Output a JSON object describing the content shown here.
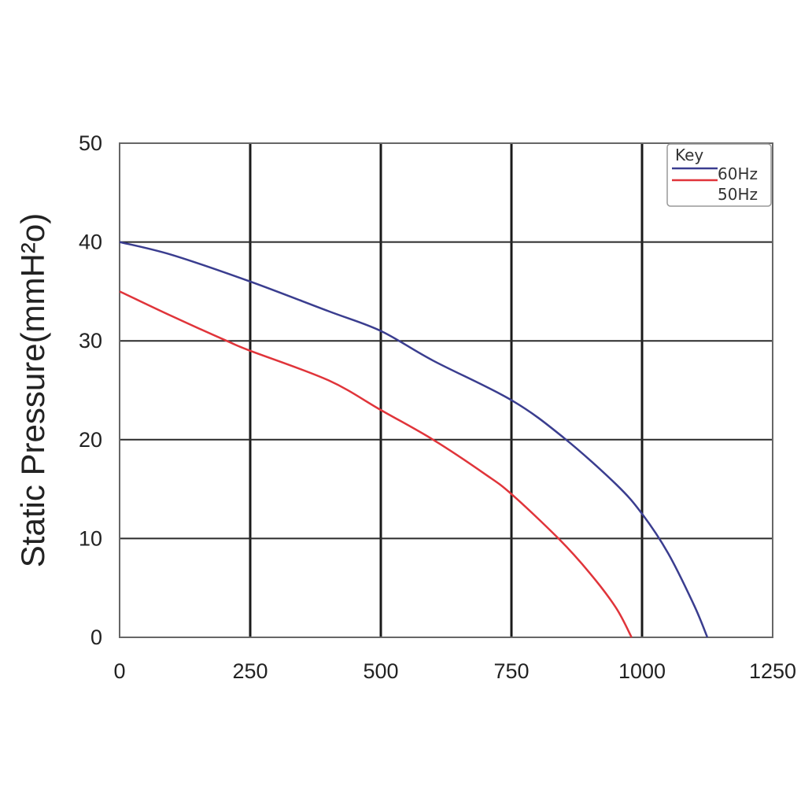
{
  "chart_data": {
    "type": "line",
    "title": "",
    "xlabel": "",
    "ylabel": "Static Pressure(mmH²o)",
    "xlim": [
      0,
      1250
    ],
    "ylim": [
      0,
      50
    ],
    "x_ticks": [
      "0",
      "250",
      "500",
      "750",
      "1000",
      "1250"
    ],
    "y_ticks": [
      "0",
      "10",
      "20",
      "30",
      "40",
      "50"
    ],
    "grid": true,
    "legend": {
      "title": "Key",
      "placement": "top-right"
    },
    "series": [
      {
        "name": "60Hz",
        "color": "#3a3d8f",
        "points": [
          [
            0,
            40
          ],
          [
            100,
            38.7
          ],
          [
            250,
            36
          ],
          [
            400,
            33
          ],
          [
            500,
            31
          ],
          [
            600,
            28
          ],
          [
            750,
            24
          ],
          [
            850,
            20.2
          ],
          [
            950,
            15.5
          ],
          [
            1000,
            12.5
          ],
          [
            1050,
            8.5
          ],
          [
            1100,
            3.2
          ],
          [
            1125,
            0
          ]
        ]
      },
      {
        "name": "50Hz",
        "color": "#e0343a",
        "points": [
          [
            0,
            35
          ],
          [
            100,
            32.5
          ],
          [
            205,
            30
          ],
          [
            250,
            29
          ],
          [
            400,
            26
          ],
          [
            500,
            23
          ],
          [
            600,
            20
          ],
          [
            700,
            16.5
          ],
          [
            750,
            14.5
          ],
          [
            840,
            10
          ],
          [
            900,
            6.5
          ],
          [
            950,
            3
          ],
          [
            980,
            0
          ]
        ]
      }
    ]
  }
}
